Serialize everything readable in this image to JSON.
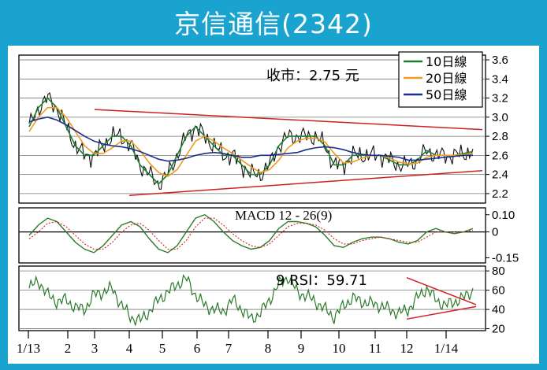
{
  "title": "京信通信(2342)",
  "price_label": "收市：2.75 元",
  "colors": {
    "frame": "#1aa3cf",
    "ma10": "#1e7d2e",
    "ma20": "#f09a20",
    "ma50": "#1a2e8c",
    "trend": "#d21f1f",
    "price": "#111111",
    "rsi": "#2a7a2a",
    "macd": "#2a7a2a",
    "signal": "#d21f1f"
  },
  "chart_data": [
    {
      "type": "line",
      "name": "price",
      "x_ticks": [
        "1/13",
        "2",
        "3",
        "4",
        "5",
        "6",
        "7",
        "8",
        "9",
        "10",
        "11",
        "12",
        "1/14"
      ],
      "y_ticks": [
        "3.6",
        "3.4",
        "3.2",
        "3.0",
        "2.8",
        "2.6",
        "2.4",
        "2.2"
      ],
      "ylim": [
        2.1,
        3.65
      ],
      "annotation": "收市：2.75 元",
      "legend": {
        "position": "top-right",
        "entries": [
          "10日線",
          "20日線",
          "50日線"
        ]
      },
      "series": [
        {
          "name": "10日線",
          "color": "#1e7d2e",
          "values": [
            2.9,
            3.1,
            3.2,
            3.1,
            2.9,
            2.7,
            2.6,
            2.6,
            2.7,
            2.8,
            2.8,
            2.7,
            2.5,
            2.4,
            2.3,
            2.4,
            2.6,
            2.8,
            2.9,
            2.8,
            2.7,
            2.6,
            2.6,
            2.5,
            2.4,
            2.4,
            2.5,
            2.7,
            2.8,
            2.8,
            2.8,
            2.8,
            2.7,
            2.5,
            2.5,
            2.6,
            2.6,
            2.6,
            2.6,
            2.55,
            2.5,
            2.5,
            2.55,
            2.65,
            2.6,
            2.6,
            2.6,
            2.62,
            2.64
          ]
        },
        {
          "name": "20日線",
          "color": "#f09a20",
          "values": [
            2.85,
            3.0,
            3.1,
            3.1,
            3.0,
            2.85,
            2.7,
            2.62,
            2.62,
            2.68,
            2.75,
            2.75,
            2.65,
            2.52,
            2.42,
            2.38,
            2.45,
            2.6,
            2.75,
            2.8,
            2.75,
            2.68,
            2.62,
            2.55,
            2.48,
            2.42,
            2.45,
            2.55,
            2.68,
            2.75,
            2.78,
            2.78,
            2.74,
            2.62,
            2.52,
            2.53,
            2.57,
            2.6,
            2.6,
            2.57,
            2.53,
            2.51,
            2.52,
            2.58,
            2.6,
            2.6,
            2.6,
            2.61,
            2.62
          ]
        },
        {
          "name": "50日線",
          "color": "#1a2e8c",
          "values": [
            2.95,
            2.98,
            3.0,
            2.97,
            2.92,
            2.86,
            2.8,
            2.75,
            2.72,
            2.7,
            2.69,
            2.67,
            2.64,
            2.6,
            2.56,
            2.54,
            2.55,
            2.57,
            2.6,
            2.62,
            2.63,
            2.62,
            2.6,
            2.58,
            2.58,
            2.6,
            2.6,
            2.61,
            2.62,
            2.63,
            2.66,
            2.68,
            2.69,
            2.68,
            2.66,
            2.63,
            2.61,
            2.6,
            2.6,
            2.59,
            2.58,
            2.55,
            2.55,
            2.56,
            2.57,
            2.58,
            2.59,
            2.6,
            2.6
          ]
        }
      ],
      "trendlines": [
        {
          "from": [
            "3",
            3.08
          ],
          "to": [
            "1/14",
            2.87
          ]
        },
        {
          "from": [
            "4",
            2.18
          ],
          "to": [
            "1/14",
            2.44
          ]
        }
      ]
    },
    {
      "type": "line",
      "name": "MACD",
      "title": "MACD 12 - 26(9)",
      "y_ticks": [
        "0.10",
        "0",
        "-0.15"
      ],
      "ylim": [
        -0.18,
        0.14
      ],
      "series": [
        {
          "name": "MACD",
          "values": [
            -0.02,
            0.04,
            0.08,
            0.06,
            0.0,
            -0.06,
            -0.1,
            -0.12,
            -0.08,
            -0.02,
            0.04,
            0.06,
            0.03,
            -0.04,
            -0.1,
            -0.12,
            -0.08,
            0.0,
            0.08,
            0.1,
            0.06,
            0.0,
            -0.05,
            -0.08,
            -0.1,
            -0.09,
            -0.05,
            0.02,
            0.06,
            0.06,
            0.05,
            0.03,
            -0.02,
            -0.08,
            -0.09,
            -0.06,
            -0.04,
            -0.03,
            -0.03,
            -0.04,
            -0.06,
            -0.07,
            -0.05,
            0.0,
            0.02,
            0.0,
            -0.01,
            0.0,
            0.02
          ]
        },
        {
          "name": "Signal",
          "values": [
            -0.04,
            0.0,
            0.05,
            0.06,
            0.03,
            -0.02,
            -0.07,
            -0.1,
            -0.1,
            -0.06,
            0.0,
            0.04,
            0.05,
            0.01,
            -0.05,
            -0.1,
            -0.1,
            -0.05,
            0.03,
            0.08,
            0.08,
            0.04,
            -0.01,
            -0.05,
            -0.08,
            -0.09,
            -0.07,
            -0.02,
            0.03,
            0.05,
            0.05,
            0.04,
            0.01,
            -0.04,
            -0.07,
            -0.07,
            -0.05,
            -0.04,
            -0.03,
            -0.04,
            -0.05,
            -0.06,
            -0.06,
            -0.03,
            0.0,
            0.0,
            0.0,
            0.0,
            0.01
          ]
        }
      ]
    },
    {
      "type": "line",
      "name": "RSI",
      "annotation": "9 RSI：59.71",
      "y_ticks": [
        "80",
        "60",
        "40",
        "20"
      ],
      "ylim": [
        18,
        85
      ],
      "series": [
        {
          "name": "9 RSI",
          "values": [
            62,
            70,
            55,
            48,
            50,
            42,
            40,
            55,
            58,
            62,
            44,
            32,
            28,
            38,
            50,
            58,
            66,
            72,
            55,
            44,
            40,
            38,
            50,
            40,
            30,
            36,
            50,
            66,
            74,
            58,
            54,
            48,
            40,
            32,
            44,
            52,
            48,
            46,
            44,
            40,
            36,
            40,
            52,
            62,
            50,
            44,
            48,
            52,
            60
          ]
        }
      ],
      "trendlines": [
        {
          "from": [
            "12",
            73
          ],
          "to": [
            "1/14",
            45
          ]
        },
        {
          "from": [
            "12",
            30
          ],
          "to": [
            "1/14",
            43
          ]
        }
      ]
    }
  ]
}
